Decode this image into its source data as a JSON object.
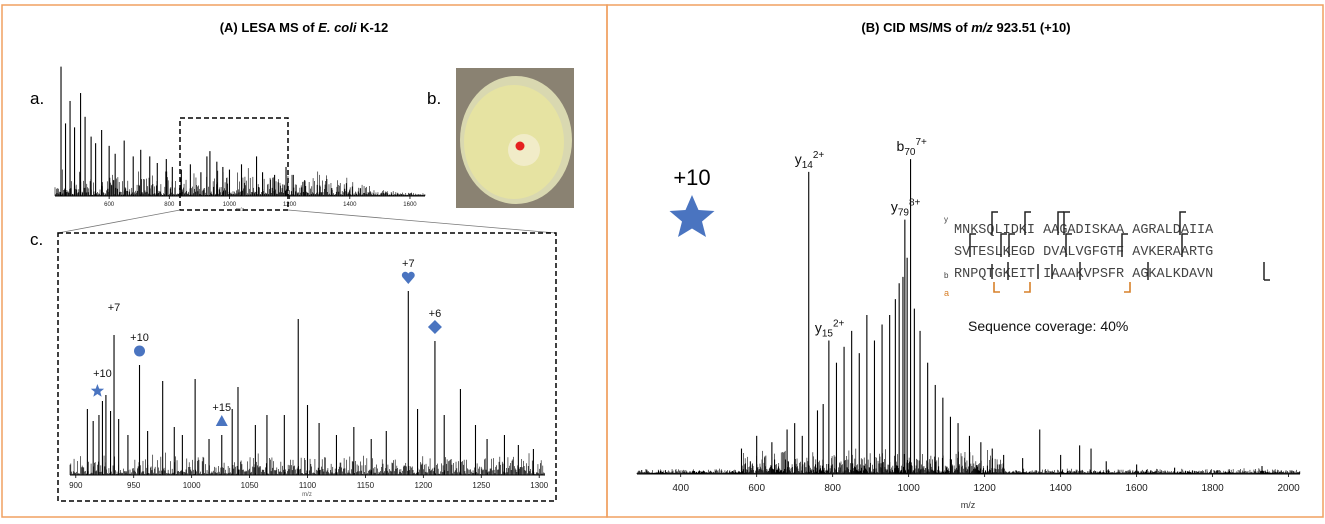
{
  "panels": {
    "a_title_prefix": "(A) LESA MS of ",
    "a_title_italic": "E. coli",
    "a_title_suffix": " K-12",
    "b_title_prefix": "(B) CID MS/MS of ",
    "b_title_italic": "m/z",
    "b_title_suffix": " 923.51 (+10)",
    "label_a": "a.",
    "label_b": "b.",
    "label_c": "c.",
    "border_color": "#f0a060"
  },
  "sequence": {
    "y_label": "y",
    "b_label": "b",
    "a_label": "a",
    "line1": "MNKSQLIDKI AAGADISKAA AGRALDAIIA",
    "line2": "SVTESLKEGD DVALVGFGTF AVKERAARTG",
    "line3": "RNPQTGKEIT IAAAKVPSFR AGKALKDAVN",
    "coverage": "Sequence coverage: 40%"
  },
  "chart_data": [
    {
      "id": "A-a",
      "type": "line",
      "title": "",
      "xlabel": "m/z",
      "xlim": [
        420,
        1650
      ],
      "x_ticks": [
        600,
        800,
        1000,
        1200,
        1400,
        1600
      ],
      "peaks": [
        [
          440,
          0.98
        ],
        [
          455,
          0.55
        ],
        [
          470,
          0.72
        ],
        [
          485,
          0.52
        ],
        [
          505,
          0.78
        ],
        [
          520,
          0.6
        ],
        [
          540,
          0.45
        ],
        [
          555,
          0.4
        ],
        [
          575,
          0.5
        ],
        [
          600,
          0.38
        ],
        [
          620,
          0.32
        ],
        [
          650,
          0.42
        ],
        [
          680,
          0.3
        ],
        [
          705,
          0.35
        ],
        [
          735,
          0.3
        ],
        [
          760,
          0.25
        ],
        [
          790,
          0.28
        ],
        [
          810,
          0.22
        ],
        [
          840,
          0.2
        ],
        [
          870,
          0.24
        ],
        [
          905,
          0.18
        ],
        [
          925,
          0.3
        ],
        [
          935,
          0.34
        ],
        [
          958,
          0.26
        ],
        [
          978,
          0.22
        ],
        [
          1000,
          0.2
        ],
        [
          1040,
          0.24
        ],
        [
          1090,
          0.3
        ],
        [
          1110,
          0.18
        ],
        [
          1150,
          0.16
        ],
        [
          1188,
          0.22
        ],
        [
          1212,
          0.16
        ],
        [
          1250,
          0.12
        ],
        [
          1300,
          0.08
        ],
        [
          1340,
          0.06
        ],
        [
          1400,
          0.04
        ]
      ]
    },
    {
      "id": "A-c",
      "type": "line",
      "title": "",
      "xlabel": "m/z",
      "xlim": [
        895,
        1305
      ],
      "x_ticks": [
        900,
        950,
        1000,
        1050,
        1100,
        1150,
        1200,
        1250,
        1300
      ],
      "annotations": [
        {
          "x": 923,
          "label": "+10",
          "marker": "star"
        },
        {
          "x": 933,
          "label": "+7",
          "marker": "moon"
        },
        {
          "x": 955,
          "label": "+10",
          "marker": "circle"
        },
        {
          "x": 1026,
          "label": "+15",
          "marker": "triangle"
        },
        {
          "x": 1187,
          "label": "+7",
          "marker": "heart"
        },
        {
          "x": 1210,
          "label": "+6",
          "marker": "diamond"
        }
      ],
      "peaks": [
        [
          910,
          0.33
        ],
        [
          915,
          0.27
        ],
        [
          920,
          0.3
        ],
        [
          923,
          0.37
        ],
        [
          926,
          0.4
        ],
        [
          930,
          0.32
        ],
        [
          933,
          0.7
        ],
        [
          937,
          0.28
        ],
        [
          945,
          0.2
        ],
        [
          955,
          0.55
        ],
        [
          962,
          0.22
        ],
        [
          975,
          0.47
        ],
        [
          985,
          0.24
        ],
        [
          992,
          0.2
        ],
        [
          1003,
          0.48
        ],
        [
          1015,
          0.18
        ],
        [
          1026,
          0.2
        ],
        [
          1035,
          0.33
        ],
        [
          1040,
          0.44
        ],
        [
          1055,
          0.25
        ],
        [
          1065,
          0.3
        ],
        [
          1080,
          0.3
        ],
        [
          1092,
          0.78
        ],
        [
          1100,
          0.35
        ],
        [
          1110,
          0.26
        ],
        [
          1125,
          0.2
        ],
        [
          1140,
          0.24
        ],
        [
          1155,
          0.18
        ],
        [
          1168,
          0.22
        ],
        [
          1187,
          0.92
        ],
        [
          1195,
          0.33
        ],
        [
          1210,
          0.67
        ],
        [
          1218,
          0.3
        ],
        [
          1232,
          0.43
        ],
        [
          1245,
          0.25
        ],
        [
          1255,
          0.18
        ],
        [
          1270,
          0.2
        ],
        [
          1282,
          0.15
        ],
        [
          1295,
          0.13
        ]
      ]
    },
    {
      "id": "B",
      "type": "line",
      "title": "",
      "xlabel": "m/z",
      "xlim": [
        285,
        2030
      ],
      "x_ticks": [
        400,
        600,
        800,
        1000,
        1200,
        1400,
        1600,
        1800,
        2000
      ],
      "precursor_label": "+10",
      "fragments": [
        {
          "x": 737,
          "label": "y",
          "sub": "14",
          "sup": "2+"
        },
        {
          "x": 790,
          "label": "y",
          "sub": "15",
          "sup": "2+"
        },
        {
          "x": 990,
          "label": "y",
          "sub": "79",
          "sup": "8+"
        },
        {
          "x": 1005,
          "label": "b",
          "sub": "70",
          "sup": "7+"
        }
      ],
      "peaks": [
        [
          560,
          0.08
        ],
        [
          600,
          0.12
        ],
        [
          640,
          0.1
        ],
        [
          680,
          0.14
        ],
        [
          700,
          0.16
        ],
        [
          720,
          0.12
        ],
        [
          737,
          0.95
        ],
        [
          760,
          0.2
        ],
        [
          775,
          0.22
        ],
        [
          790,
          0.42
        ],
        [
          810,
          0.35
        ],
        [
          830,
          0.4
        ],
        [
          850,
          0.45
        ],
        [
          870,
          0.38
        ],
        [
          890,
          0.5
        ],
        [
          910,
          0.42
        ],
        [
          930,
          0.47
        ],
        [
          950,
          0.5
        ],
        [
          965,
          0.55
        ],
        [
          975,
          0.6
        ],
        [
          985,
          0.62
        ],
        [
          990,
          0.8
        ],
        [
          996,
          0.68
        ],
        [
          1005,
          0.99
        ],
        [
          1015,
          0.52
        ],
        [
          1030,
          0.45
        ],
        [
          1050,
          0.35
        ],
        [
          1070,
          0.28
        ],
        [
          1090,
          0.24
        ],
        [
          1110,
          0.18
        ],
        [
          1130,
          0.16
        ],
        [
          1160,
          0.12
        ],
        [
          1190,
          0.1
        ],
        [
          1220,
          0.08
        ],
        [
          1250,
          0.06
        ],
        [
          1300,
          0.05
        ],
        [
          1345,
          0.14
        ],
        [
          1400,
          0.06
        ],
        [
          1450,
          0.09
        ],
        [
          1480,
          0.08
        ],
        [
          1520,
          0.04
        ],
        [
          1600,
          0.03
        ],
        [
          1700,
          0.02
        ],
        [
          1930,
          0.025
        ]
      ]
    }
  ]
}
